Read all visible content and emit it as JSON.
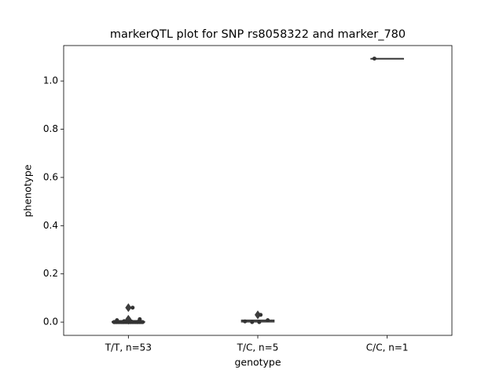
{
  "chart_data": {
    "type": "box",
    "title": "markerQTL plot for SNP rs8058322 and marker_780",
    "x_label": "genotype",
    "y_label": "phenotype",
    "categories": [
      "T/T, n=53",
      "T/C, n=5",
      "C/C, n=1"
    ],
    "color": "#3d3d3d",
    "point_color": "#333333",
    "ylim": [
      -0.055,
      1.147
    ],
    "yticks": [
      {
        "value": 0,
        "label": "0.0"
      },
      0.2,
      0.4,
      0.6,
      0.8,
      {
        "value": 1,
        "label": "1.0"
      }
    ],
    "boxes": [
      {
        "whisker_low": 0,
        "q1": 0,
        "median": 0,
        "q3": 0.002,
        "whisker_high": 0.004,
        "outliers": [
          0.06,
          0.012,
          0.008
        ]
      },
      {
        "whisker_low": 0,
        "q1": 0.001,
        "median": 0.003,
        "q3": 0.008,
        "whisker_high": 0.008,
        "outliers": [
          0.03
        ]
      },
      {
        "whisker_low": 1.093,
        "q1": 1.093,
        "median": 1.093,
        "q3": 1.093,
        "whisker_high": 1.093,
        "outliers": []
      }
    ],
    "points": [
      [
        0,
        0,
        0,
        0,
        0,
        0,
        0,
        0,
        0,
        0,
        0,
        0,
        0,
        0,
        0,
        0,
        0,
        0,
        0,
        0,
        0,
        0,
        0,
        0,
        0,
        0,
        0,
        0,
        0,
        0,
        0,
        0,
        0,
        0,
        0,
        0,
        0,
        0,
        0,
        0,
        0,
        0,
        0,
        0,
        0,
        0,
        0,
        0.002,
        0.003,
        0.004,
        0.008,
        0.012,
        0.06
      ],
      [
        0,
        0,
        0.003,
        0.008,
        0.03
      ],
      [
        1.093
      ]
    ]
  }
}
